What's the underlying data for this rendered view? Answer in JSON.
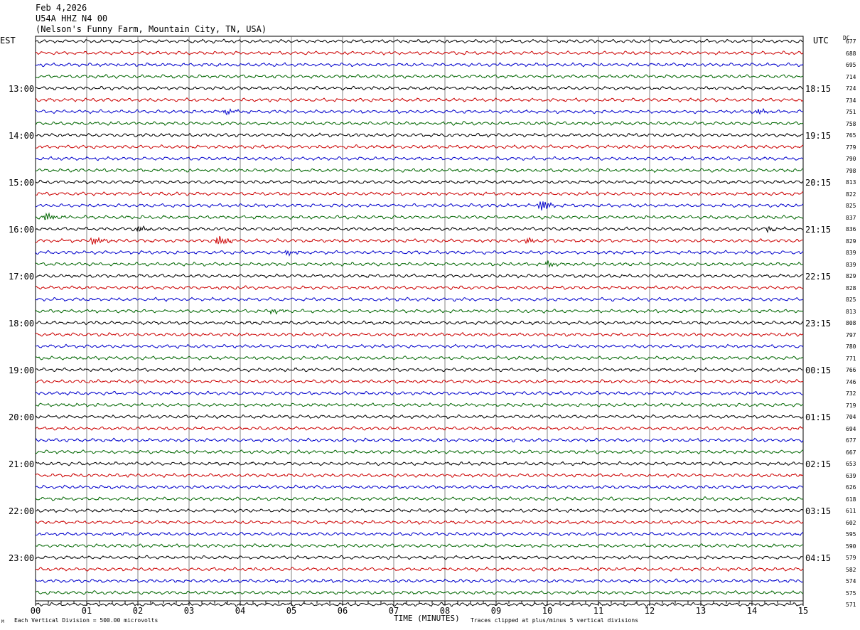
{
  "header": {
    "date": "Feb 4,2026",
    "station": "U54A HHZ N4 00",
    "location": "(Nelson's Funny Farm, Mountain City, TN, USA)"
  },
  "left_zone_label": "EST",
  "right_zone_label": "UTC",
  "dc_label": "DC",
  "footer": {
    "scale": "Each Vertical Division =  500.00 microvolts",
    "clip": "Traces clipped at plus/minus 5 vertical divisions",
    "mark": "M"
  },
  "chart_data": {
    "type": "line",
    "title": "",
    "xlabel": "TIME (MINUTES)",
    "ylabel": "",
    "xlim": [
      0,
      15
    ],
    "x_ticks": [
      "00",
      "01",
      "02",
      "03",
      "04",
      "05",
      "06",
      "07",
      "08",
      "09",
      "10",
      "11",
      "12",
      "13",
      "14",
      "15"
    ],
    "trace_colors": [
      "#000000",
      "#cc0000",
      "#0000cc",
      "#006600"
    ],
    "left_hour_labels": [
      "13:00",
      "14:00",
      "15:00",
      "16:00",
      "17:00",
      "18:00",
      "19:00",
      "20:00",
      "21:00",
      "22:00",
      "23:00"
    ],
    "right_hour_labels": [
      "18:15",
      "19:15",
      "20:15",
      "21:15",
      "22:15",
      "23:15",
      "00:15",
      "01:15",
      "02:15",
      "03:15",
      "04:15"
    ],
    "first_labeled_row": 4,
    "rows_per_hour": 4,
    "dc_offsets": [
      677,
      688,
      695,
      714,
      724,
      734,
      751,
      758,
      765,
      779,
      790,
      798,
      813,
      822,
      825,
      837,
      836,
      829,
      839,
      839,
      829,
      828,
      825,
      813,
      808,
      797,
      780,
      771,
      766,
      746,
      732,
      719,
      704,
      694,
      677,
      667,
      653,
      639,
      626,
      618,
      611,
      602,
      595,
      590,
      579,
      582,
      574,
      575,
      571
    ],
    "events": [
      {
        "row": 15,
        "minute": 0.2,
        "amplitude": 1.6
      },
      {
        "row": 16,
        "minute": 2.0,
        "amplitude": 1.2
      },
      {
        "row": 16,
        "minute": 14.3,
        "amplitude": 1.1
      },
      {
        "row": 17,
        "minute": 1.1,
        "amplitude": 1.6
      },
      {
        "row": 17,
        "minute": 3.55,
        "amplitude": 2.2
      },
      {
        "row": 17,
        "minute": 9.6,
        "amplitude": 1.1
      },
      {
        "row": 18,
        "minute": 4.9,
        "amplitude": 1.3
      },
      {
        "row": 14,
        "minute": 9.85,
        "amplitude": 2.4
      },
      {
        "row": 6,
        "minute": 3.7,
        "amplitude": 1.1
      },
      {
        "row": 19,
        "minute": 10.0,
        "amplitude": 1.0
      },
      {
        "row": 23,
        "minute": 4.6,
        "amplitude": 1.0
      },
      {
        "row": 6,
        "minute": 14.1,
        "amplitude": 1.0
      }
    ]
  }
}
